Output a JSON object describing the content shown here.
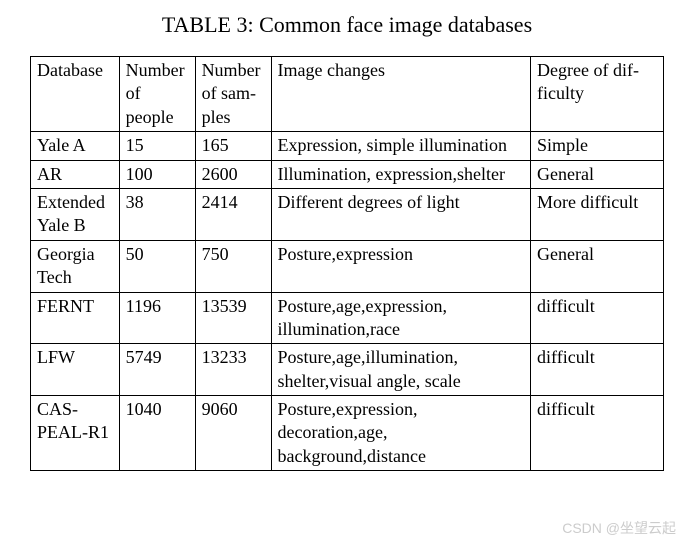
{
  "title": "TABLE 3: Common face image databases",
  "headers": {
    "database": "Database",
    "people": "Number of people",
    "samples": "Number of sam-ples",
    "changes": "Image changes",
    "difficulty": "Degree of dif-ficulty"
  },
  "rows": [
    {
      "database": "Yale A",
      "people": "15",
      "samples": "165",
      "changes": "Expression, simple illumination",
      "difficulty": "Simple"
    },
    {
      "database": "AR",
      "people": "100",
      "samples": "2600",
      "changes": "Illumination, expression,shelter",
      "difficulty": "General"
    },
    {
      "database": "Extended Yale B",
      "people": "38",
      "samples": "2414",
      "changes": "Different degrees of light",
      "difficulty": "More difficult"
    },
    {
      "database": "Georgia Tech",
      "people": "50",
      "samples": "750",
      "changes": "Posture,expression",
      "difficulty": "General"
    },
    {
      "database": "FERNT",
      "people": "1196",
      "samples": "13539",
      "changes": "Posture,age,expression, illumination,race",
      "difficulty": "difficult"
    },
    {
      "database": "LFW",
      "people": "5749",
      "samples": "13233",
      "changes": "Posture,age,illumination, shelter,visual angle, scale",
      "difficulty": "difficult"
    },
    {
      "database": "CAS-PEAL-R1",
      "people": "1040",
      "samples": "9060",
      "changes": "Posture,expression, decoration,age, background,distance",
      "difficulty": "difficult"
    }
  ],
  "watermark": "CSDN @坐望云起"
}
